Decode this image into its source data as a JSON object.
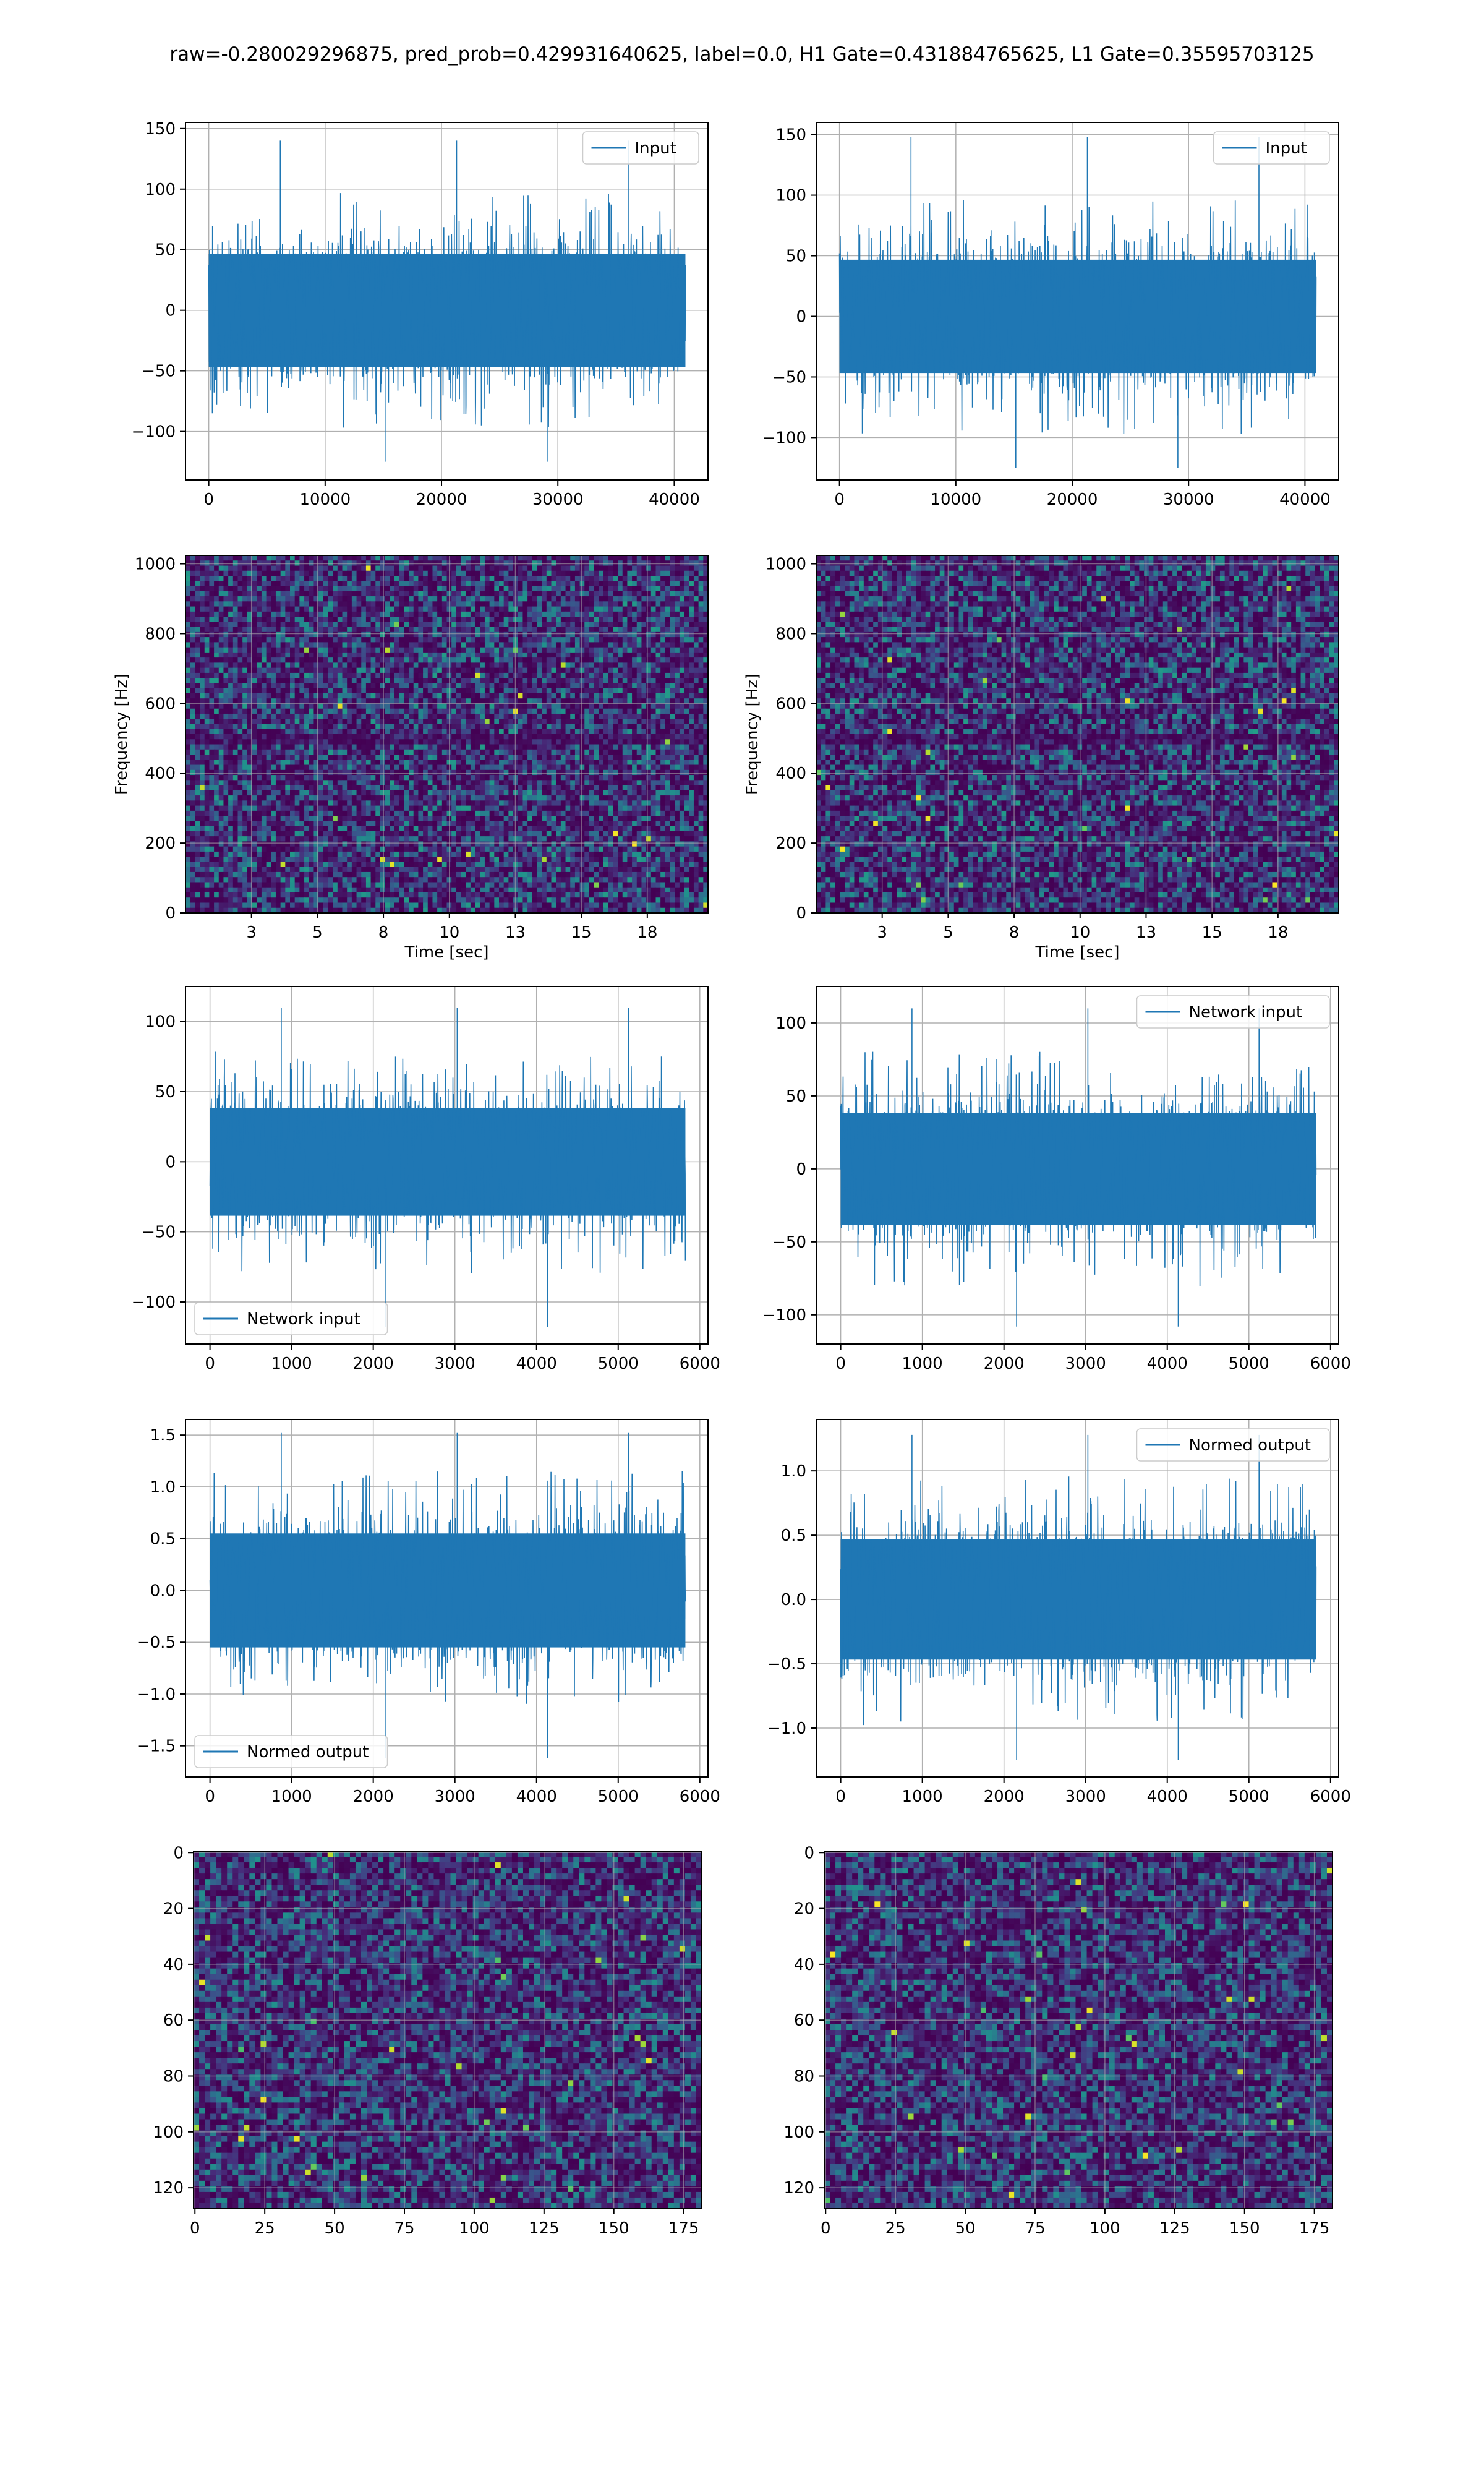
{
  "title": "raw=-0.280029296875, pred_prob=0.429931640625, label=0.0, H1 Gate=0.431884765625, L1 Gate=0.35595703125",
  "colors": {
    "line": "#1f77b4",
    "grid": "#b0b0b0",
    "viridis": [
      "#440154",
      "#472d7b",
      "#3b528b",
      "#2c728e",
      "#21918c",
      "#28ae80",
      "#5ec962",
      "#addc30",
      "#fde725"
    ]
  },
  "chart_data": [
    {
      "type": "line",
      "legend": [
        "Input"
      ],
      "legend_loc": "upper right",
      "xlim": [
        -2000,
        42900
      ],
      "ylim": [
        -140,
        155
      ],
      "xticks": [
        0,
        10000,
        20000,
        30000,
        40000
      ],
      "yticks": [
        -100,
        -50,
        0,
        50,
        100,
        150
      ],
      "series": [
        {
          "name": "Input",
          "x_range": [
            0,
            40959
          ],
          "envelope_typical": [
            -85,
            85
          ],
          "envelope_extreme": [
            -125,
            140
          ]
        }
      ]
    },
    {
      "type": "line",
      "legend": [
        "Input"
      ],
      "legend_loc": "upper right",
      "xlim": [
        -2000,
        42900
      ],
      "ylim": [
        -135,
        160
      ],
      "xticks": [
        0,
        10000,
        20000,
        30000,
        40000
      ],
      "yticks": [
        -100,
        -50,
        0,
        50,
        100,
        150
      ],
      "series": [
        {
          "name": "Input",
          "x_range": [
            0,
            40959
          ],
          "envelope_typical": [
            -85,
            85
          ],
          "envelope_extreme": [
            -125,
            148
          ]
        }
      ]
    },
    {
      "type": "heatmap",
      "xlabel": "Time [sec]",
      "ylabel": "Frequency [Hz]",
      "xlim": [
        0,
        19.8
      ],
      "ylim": [
        0,
        1024
      ],
      "xticks": [
        2.5,
        5.0,
        7.5,
        10.0,
        12.5,
        15.0,
        17.5
      ],
      "yticks": [
        0,
        200,
        400,
        600,
        800,
        1000
      ],
      "colormap": "viridis",
      "dark_band_hz": 500
    },
    {
      "type": "heatmap",
      "xlabel": "Time [sec]",
      "ylabel": "Frequency [Hz]",
      "xlim": [
        0,
        19.8
      ],
      "ylim": [
        0,
        1024
      ],
      "xticks": [
        2.5,
        5.0,
        7.5,
        10.0,
        12.5,
        15.0,
        17.5
      ],
      "yticks": [
        0,
        200,
        400,
        600,
        800,
        1000
      ],
      "colormap": "viridis",
      "dark_band_hz": 500
    },
    {
      "type": "line",
      "legend": [
        "Network input"
      ],
      "legend_loc": "lower left",
      "xlim": [
        -300,
        6100
      ],
      "ylim": [
        -130,
        125
      ],
      "xticks": [
        0,
        1000,
        2000,
        3000,
        4000,
        5000,
        6000
      ],
      "yticks": [
        -100,
        -50,
        0,
        50,
        100
      ],
      "series": [
        {
          "name": "Network input",
          "x_range": [
            0,
            5823
          ],
          "envelope_typical": [
            -70,
            70
          ],
          "envelope_extreme": [
            -118,
            110
          ]
        }
      ]
    },
    {
      "type": "line",
      "legend": [
        "Network input"
      ],
      "legend_loc": "upper right",
      "xlim": [
        -300,
        6100
      ],
      "ylim": [
        -120,
        125
      ],
      "xticks": [
        0,
        1000,
        2000,
        3000,
        4000,
        5000,
        6000
      ],
      "yticks": [
        -100,
        -50,
        0,
        50,
        100
      ],
      "series": [
        {
          "name": "Network input",
          "x_range": [
            0,
            5823
          ],
          "envelope_typical": [
            -70,
            70
          ],
          "envelope_extreme": [
            -108,
            110
          ]
        }
      ]
    },
    {
      "type": "line",
      "legend": [
        "Normed output"
      ],
      "legend_loc": "lower left",
      "xlim": [
        -300,
        6100
      ],
      "ylim": [
        -1.8,
        1.65
      ],
      "xticks": [
        0,
        1000,
        2000,
        3000,
        4000,
        5000,
        6000
      ],
      "yticks": [
        -1.5,
        -1.0,
        -0.5,
        0.0,
        0.5,
        1.0,
        1.5
      ],
      "series": [
        {
          "name": "Normed output",
          "x_range": [
            0,
            5823
          ],
          "envelope_typical": [
            -1.0,
            1.0
          ],
          "envelope_extreme": [
            -1.62,
            1.52
          ]
        }
      ]
    },
    {
      "type": "line",
      "legend": [
        "Normed output"
      ],
      "legend_loc": "upper right",
      "xlim": [
        -300,
        6100
      ],
      "ylim": [
        -1.38,
        1.4
      ],
      "xticks": [
        0,
        1000,
        2000,
        3000,
        4000,
        5000,
        6000
      ],
      "yticks": [
        -1.0,
        -0.5,
        0.0,
        0.5,
        1.0
      ],
      "series": [
        {
          "name": "Normed output",
          "x_range": [
            0,
            5823
          ],
          "envelope_typical": [
            -0.85,
            0.85
          ],
          "envelope_extreme": [
            -1.25,
            1.28
          ]
        }
      ]
    },
    {
      "type": "heatmap",
      "xlim": [
        -0.5,
        181.5
      ],
      "ylim": [
        127.5,
        -0.5
      ],
      "xticks": [
        0,
        25,
        50,
        75,
        100,
        125,
        150,
        175
      ],
      "yticks": [
        0,
        20,
        40,
        60,
        80,
        100,
        120
      ],
      "colormap": "viridis",
      "cols": 182,
      "rows": 128
    },
    {
      "type": "heatmap",
      "xlim": [
        -0.5,
        181.5
      ],
      "ylim": [
        127.5,
        -0.5
      ],
      "xticks": [
        0,
        25,
        50,
        75,
        100,
        125,
        150,
        175
      ],
      "yticks": [
        0,
        20,
        40,
        60,
        80,
        100,
        120
      ],
      "colormap": "viridis",
      "cols": 182,
      "rows": 128
    }
  ]
}
